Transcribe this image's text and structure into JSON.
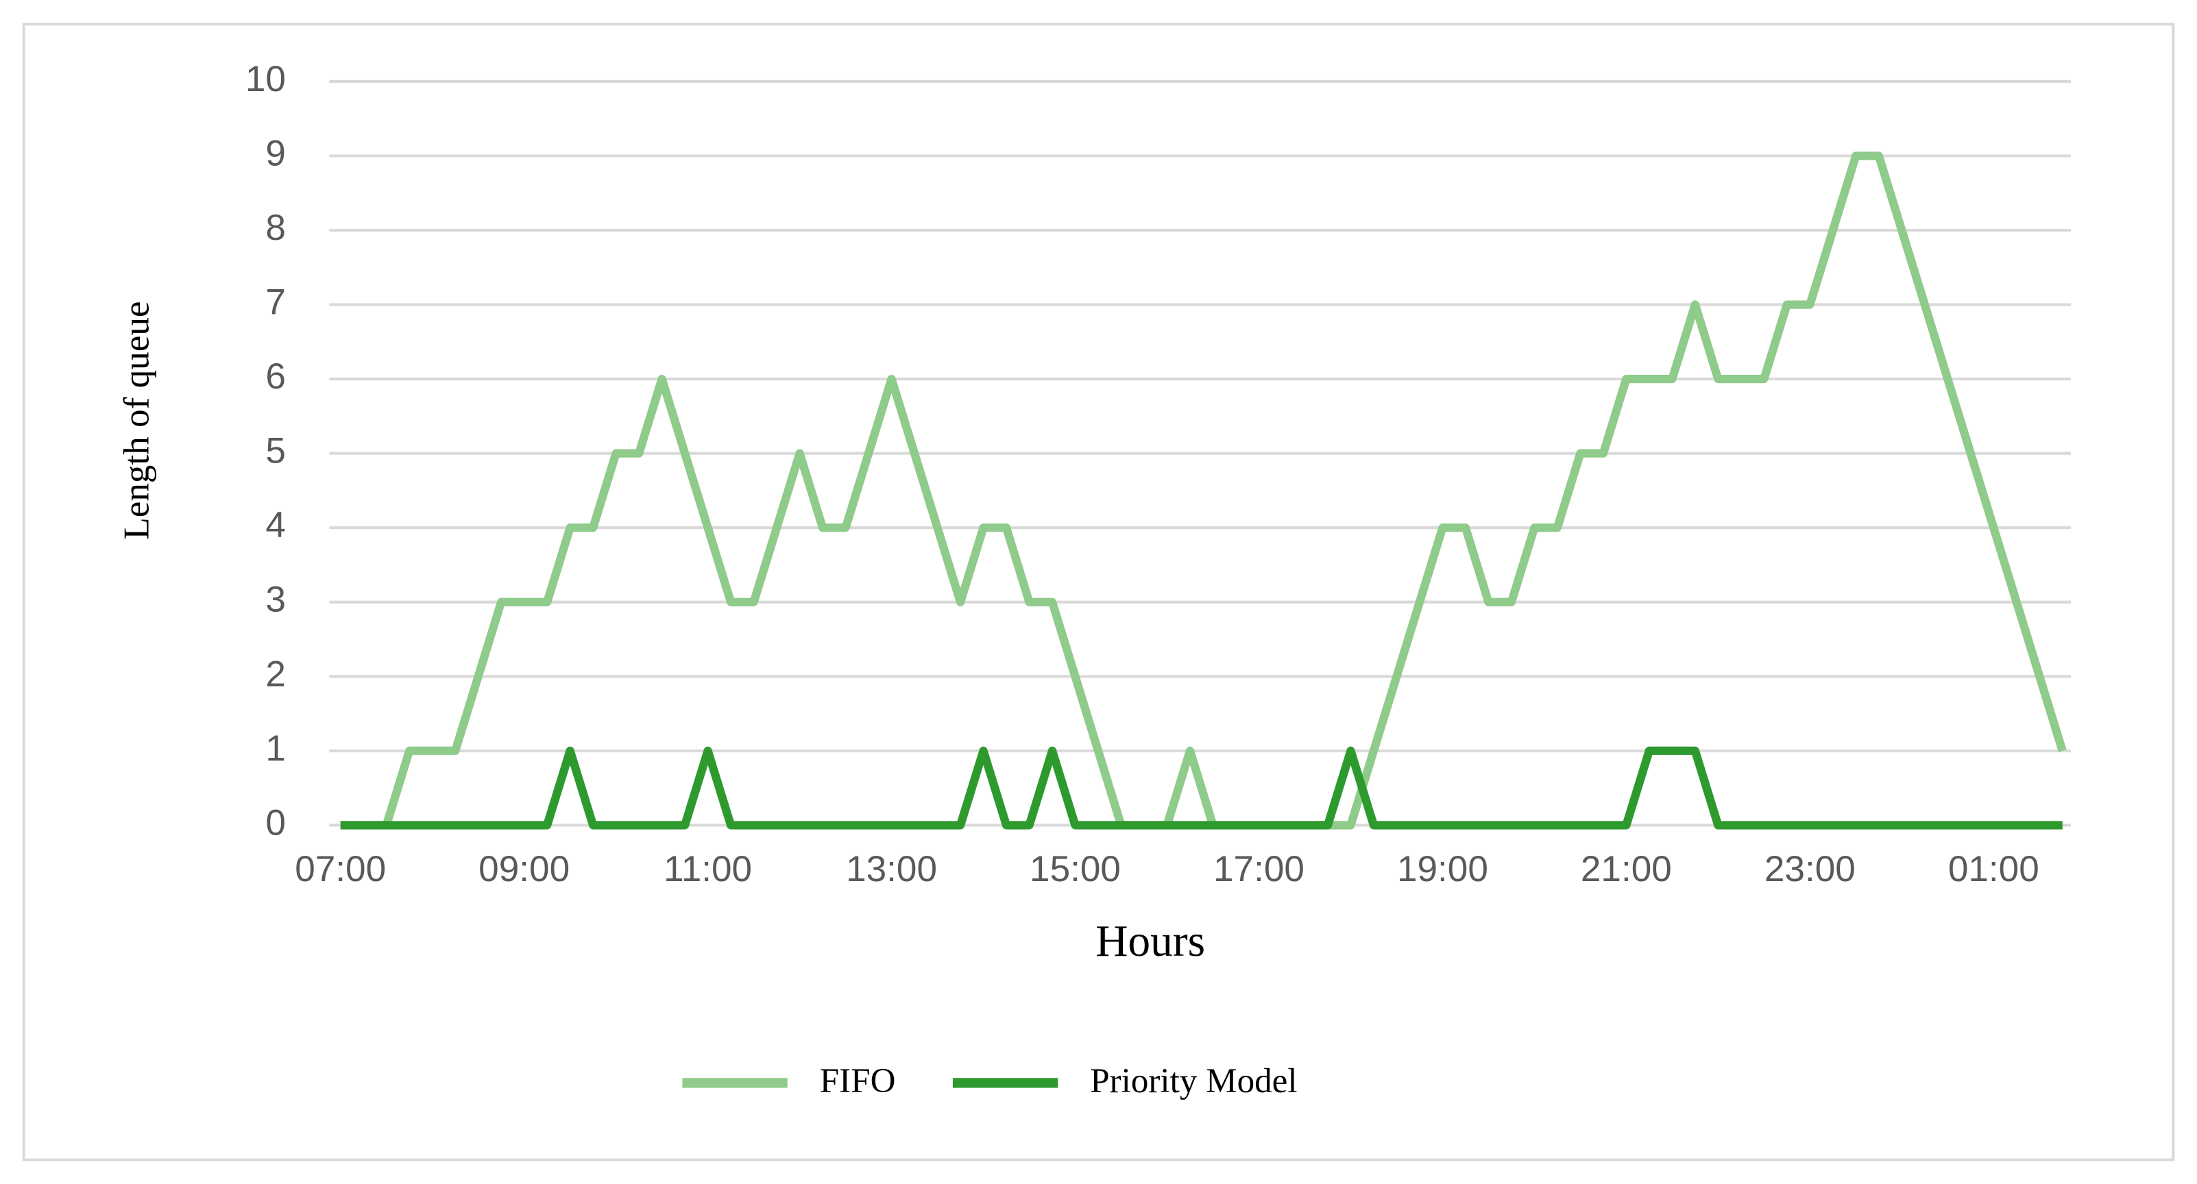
{
  "chart_data": {
    "type": "line",
    "x_label": "Hours",
    "y_label": "Length of queue",
    "categories": [
      "07:00",
      null,
      null,
      null,
      null,
      null,
      null,
      null,
      "09:00",
      null,
      null,
      null,
      null,
      null,
      null,
      null,
      "11:00",
      null,
      null,
      null,
      null,
      null,
      null,
      null,
      "13:00",
      null,
      null,
      null,
      null,
      null,
      null,
      null,
      "15:00",
      null,
      null,
      null,
      null,
      null,
      null,
      null,
      "17:00",
      null,
      null,
      null,
      null,
      null,
      null,
      null,
      "19:00",
      null,
      null,
      null,
      null,
      null,
      null,
      null,
      "21:00",
      null,
      null,
      null,
      null,
      null,
      null,
      null,
      "23:00",
      null,
      null,
      null,
      null,
      null,
      null,
      null,
      "01:00",
      null,
      null,
      null
    ],
    "series": [
      {
        "name": "FIFO",
        "color": "#8fcb8b",
        "values": [
          0,
          0,
          0,
          1,
          1,
          1,
          2,
          3,
          3,
          3,
          4,
          4,
          5,
          5,
          6,
          5,
          4,
          3,
          3,
          4,
          5,
          4,
          4,
          5,
          6,
          5,
          4,
          3,
          4,
          4,
          3,
          3,
          2,
          1,
          0,
          0,
          0,
          1,
          0,
          0,
          0,
          0,
          0,
          0,
          0,
          1,
          2,
          3,
          4,
          4,
          3,
          3,
          4,
          4,
          5,
          5,
          6,
          6,
          6,
          7,
          6,
          6,
          6,
          7,
          7,
          8,
          9,
          9,
          8,
          7,
          6,
          5,
          4,
          3,
          2,
          1
        ]
      },
      {
        "name": "Priority Model",
        "color": "#2e9a2e",
        "values": [
          0,
          0,
          0,
          0,
          0,
          0,
          0,
          0,
          0,
          0,
          1,
          0,
          0,
          0,
          0,
          0,
          1,
          0,
          0,
          0,
          0,
          0,
          0,
          0,
          0,
          0,
          0,
          0,
          1,
          0,
          0,
          1,
          0,
          0,
          0,
          0,
          0,
          0,
          0,
          0,
          0,
          0,
          0,
          0,
          1,
          0,
          0,
          0,
          0,
          0,
          0,
          0,
          0,
          0,
          0,
          0,
          0,
          1,
          1,
          1,
          0,
          0,
          0,
          0,
          0,
          0,
          0,
          0,
          0,
          0,
          0,
          0,
          0,
          0,
          0,
          0
        ]
      }
    ],
    "ylim": [
      0,
      10
    ],
    "yticks": [
      0,
      1,
      2,
      3,
      4,
      5,
      6,
      7,
      8,
      9,
      10
    ],
    "grid": true,
    "legend": "bottom"
  }
}
